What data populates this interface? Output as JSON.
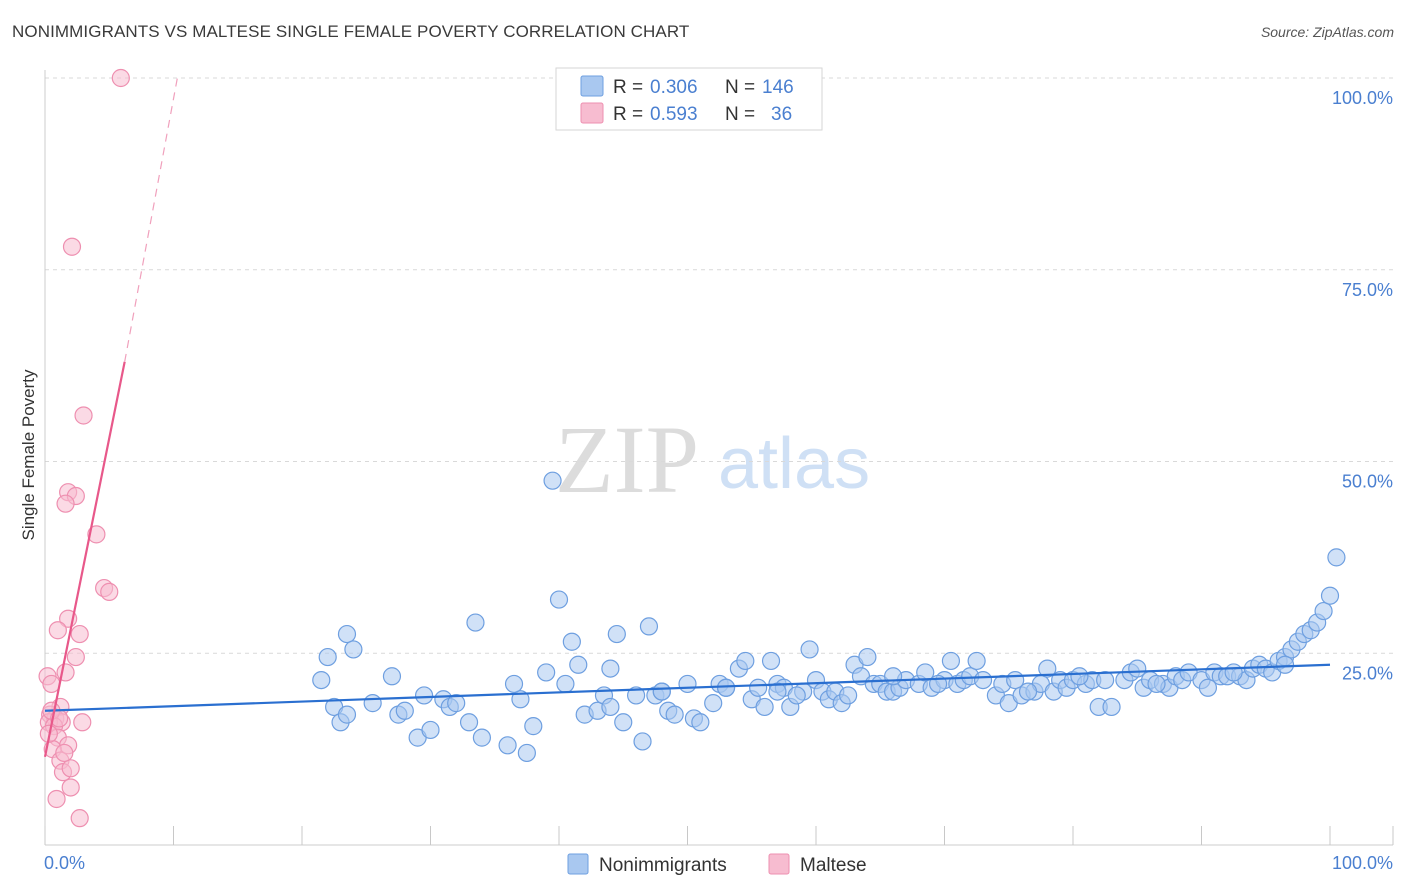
{
  "header": {
    "title": "NONIMMIGRANTS VS MALTESE SINGLE FEMALE POVERTY CORRELATION CHART",
    "source": "Source: ZipAtlas.com"
  },
  "watermark": {
    "zip": "ZIP",
    "atlas": "atlas"
  },
  "colors": {
    "blue_fill": "#a9c8f0",
    "blue_stroke": "#6e9fe0",
    "blue_line": "#2a6fd0",
    "pink_fill": "#f7bcd0",
    "pink_stroke": "#ee8fb0",
    "pink_line": "#e8588a",
    "grid": "#d9d9d9",
    "tick_text": "#4a7fd0"
  },
  "legend": {
    "series": [
      {
        "r_label": "R =",
        "r_value": "0.306",
        "n_label": "N =",
        "n_value": "146"
      },
      {
        "r_label": "R =",
        "r_value": "0.593",
        "n_label": "N =",
        "n_value": "36"
      }
    ]
  },
  "chart_data": {
    "type": "scatter",
    "title": "NONIMMIGRANTS VS MALTESE SINGLE FEMALE POVERTY CORRELATION CHART",
    "xlabel": "",
    "ylabel": "Single Female Poverty",
    "xlim": [
      0,
      100
    ],
    "ylim": [
      0,
      100
    ],
    "x_tick_labels": [
      "0.0%",
      "100.0%"
    ],
    "y_ticks": [
      25,
      50,
      75,
      100
    ],
    "y_tick_labels": [
      "25.0%",
      "50.0%",
      "75.0%",
      "100.0%"
    ],
    "grid": true,
    "legend_position": "top-center",
    "series": [
      {
        "name": "Nonimmigrants",
        "color": "#a9c8f0",
        "trend": {
          "x": [
            0,
            100
          ],
          "y": [
            17.5,
            23.5
          ],
          "style": "solid"
        },
        "points": [
          [
            21.5,
            21.5
          ],
          [
            22,
            24.5
          ],
          [
            22.5,
            18
          ],
          [
            23,
            16
          ],
          [
            23.5,
            17
          ],
          [
            23.5,
            27.5
          ],
          [
            24,
            25.5
          ],
          [
            25.5,
            18.5
          ],
          [
            27,
            22
          ],
          [
            27.5,
            17
          ],
          [
            28,
            17.5
          ],
          [
            29,
            14
          ],
          [
            29.5,
            19.5
          ],
          [
            30,
            15
          ],
          [
            31,
            19
          ],
          [
            31.5,
            18
          ],
          [
            33,
            16
          ],
          [
            33.5,
            29
          ],
          [
            34,
            14
          ],
          [
            36,
            13
          ],
          [
            37,
            19
          ],
          [
            37.5,
            12
          ],
          [
            38,
            15.5
          ],
          [
            39,
            22.5
          ],
          [
            39.5,
            47.5
          ],
          [
            40,
            32
          ],
          [
            40.5,
            21
          ],
          [
            41,
            26.5
          ],
          [
            41.5,
            23.5
          ],
          [
            42,
            17
          ],
          [
            43,
            17.5
          ],
          [
            43.5,
            19.5
          ],
          [
            44,
            18
          ],
          [
            44.5,
            27.5
          ],
          [
            45,
            16
          ],
          [
            46,
            19.5
          ],
          [
            46.5,
            13.5
          ],
          [
            47,
            28.5
          ],
          [
            47.5,
            19.5
          ],
          [
            48,
            20
          ],
          [
            48.5,
            17.5
          ],
          [
            49,
            17
          ],
          [
            50,
            21
          ],
          [
            50.5,
            16.5
          ],
          [
            51,
            16
          ],
          [
            52,
            18.5
          ],
          [
            52.5,
            21
          ],
          [
            53,
            20.5
          ],
          [
            54,
            23
          ],
          [
            54.5,
            24
          ],
          [
            55,
            19
          ],
          [
            55.5,
            20.5
          ],
          [
            56,
            18
          ],
          [
            56.5,
            24
          ],
          [
            57,
            21
          ],
          [
            57.5,
            20.5
          ],
          [
            58,
            18
          ],
          [
            59,
            20
          ],
          [
            59.5,
            25.5
          ],
          [
            60,
            21.5
          ],
          [
            60.5,
            20
          ],
          [
            61,
            19
          ],
          [
            61.5,
            20
          ],
          [
            62,
            18.5
          ],
          [
            63,
            23.5
          ],
          [
            63.5,
            22
          ],
          [
            64,
            24.5
          ],
          [
            64.5,
            21
          ],
          [
            65,
            21
          ],
          [
            65.5,
            20
          ],
          [
            66,
            20
          ],
          [
            66.5,
            20.5
          ],
          [
            67,
            21.5
          ],
          [
            68,
            21
          ],
          [
            68.5,
            22.5
          ],
          [
            69,
            20.5
          ],
          [
            70,
            21.5
          ],
          [
            70.5,
            24
          ],
          [
            71,
            21
          ],
          [
            71.5,
            21.5
          ],
          [
            72,
            22
          ],
          [
            72.5,
            24
          ],
          [
            73,
            21.5
          ],
          [
            74,
            19.5
          ],
          [
            74.5,
            21
          ],
          [
            75,
            18.5
          ],
          [
            75.5,
            21.5
          ],
          [
            76,
            19.5
          ],
          [
            77,
            20
          ],
          [
            77.5,
            21
          ],
          [
            78,
            23
          ],
          [
            78.5,
            20
          ],
          [
            79,
            21.5
          ],
          [
            79.5,
            20.5
          ],
          [
            80,
            21.5
          ],
          [
            81,
            21
          ],
          [
            81.5,
            21.5
          ],
          [
            82,
            18
          ],
          [
            82.5,
            21.5
          ],
          [
            83,
            18
          ],
          [
            84,
            21.5
          ],
          [
            84.5,
            22.5
          ],
          [
            85,
            23
          ],
          [
            85.5,
            20.5
          ],
          [
            86,
            21.5
          ],
          [
            87,
            21
          ],
          [
            87.5,
            20.5
          ],
          [
            88,
            22
          ],
          [
            88.5,
            21.5
          ],
          [
            89,
            22.5
          ],
          [
            90,
            21.5
          ],
          [
            90.5,
            20.5
          ],
          [
            91,
            22.5
          ],
          [
            91.5,
            22
          ],
          [
            92,
            22
          ],
          [
            93,
            22
          ],
          [
            93.5,
            21.5
          ],
          [
            94,
            23
          ],
          [
            94.5,
            23.5
          ],
          [
            95,
            23
          ],
          [
            95.5,
            22.5
          ],
          [
            96,
            24
          ],
          [
            96.5,
            24.5
          ],
          [
            97,
            25.5
          ],
          [
            97.5,
            26.5
          ],
          [
            98,
            27.5
          ],
          [
            98.5,
            28
          ],
          [
            99,
            29
          ],
          [
            99.5,
            30.5
          ],
          [
            100,
            32.5
          ],
          [
            100.5,
            37.5
          ],
          [
            32,
            18.5
          ],
          [
            36.5,
            21
          ],
          [
            44,
            23
          ],
          [
            58.5,
            19.5
          ],
          [
            62.5,
            19.5
          ],
          [
            66,
            22
          ],
          [
            76.5,
            20
          ],
          [
            86.5,
            21
          ],
          [
            92.5,
            22.5
          ],
          [
            48,
            20
          ],
          [
            53,
            20.5
          ],
          [
            57,
            20
          ],
          [
            69.5,
            21
          ],
          [
            80.5,
            22
          ],
          [
            96.5,
            23.5
          ]
        ]
      },
      {
        "name": "Maltese",
        "color": "#f7bcd0",
        "trend": {
          "x": [
            0,
            6.2
          ],
          "y": [
            11.5,
            63
          ],
          "style": "solid",
          "extension": {
            "x": [
              6.2,
              10.3
            ],
            "y": [
              63,
              100
            ],
            "style": "dashed"
          }
        },
        "points": [
          [
            5.9,
            100
          ],
          [
            2.1,
            78
          ],
          [
            3,
            56
          ],
          [
            1.8,
            46
          ],
          [
            2.4,
            45.5
          ],
          [
            1.6,
            44.5
          ],
          [
            4,
            40.5
          ],
          [
            4.6,
            33.5
          ],
          [
            5,
            33
          ],
          [
            1.8,
            29.5
          ],
          [
            1,
            28
          ],
          [
            2.7,
            27.5
          ],
          [
            2.4,
            24.5
          ],
          [
            1.6,
            22.5
          ],
          [
            0.2,
            22
          ],
          [
            0.5,
            21
          ],
          [
            1.2,
            18
          ],
          [
            0.4,
            17
          ],
          [
            0.8,
            16.5
          ],
          [
            1.3,
            16
          ],
          [
            0.3,
            16
          ],
          [
            2.9,
            16
          ],
          [
            0.7,
            15.5
          ],
          [
            1,
            14
          ],
          [
            1.8,
            13
          ],
          [
            0.6,
            12.5
          ],
          [
            1.2,
            11
          ],
          [
            1.4,
            9.5
          ],
          [
            2,
            10
          ],
          [
            2,
            7.5
          ],
          [
            0.9,
            6
          ],
          [
            2.7,
            3.5
          ],
          [
            0.5,
            17.5
          ],
          [
            1.1,
            16.5
          ],
          [
            0.3,
            14.5
          ],
          [
            1.5,
            12
          ]
        ]
      }
    ]
  },
  "bottom_legend": {
    "items": [
      "Nonimmigrants",
      "Maltese"
    ]
  }
}
